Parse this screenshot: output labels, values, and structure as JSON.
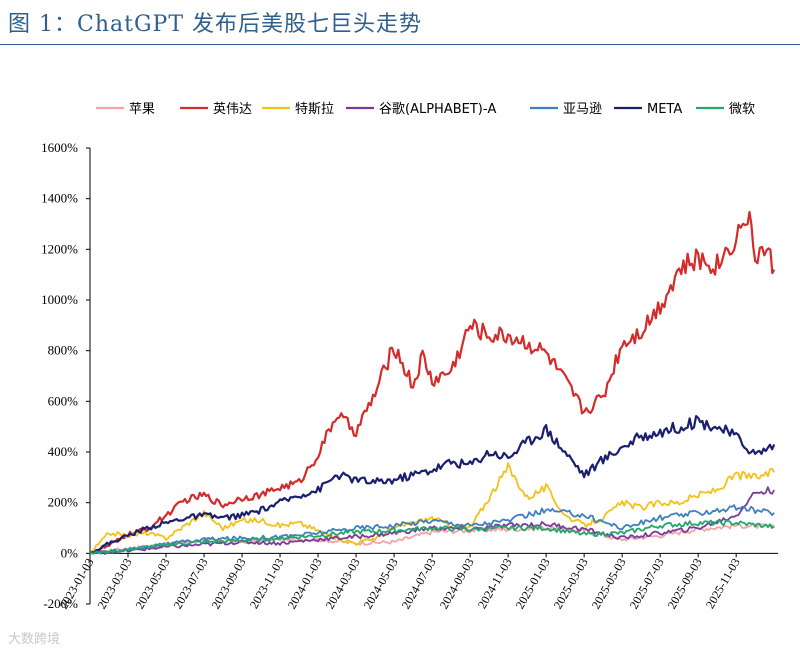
{
  "figure": {
    "title": "图 1：ChatGPT 发布后美股七巨头走势",
    "watermark": "大数跨境"
  },
  "colors": {
    "title": "#2f5f8c",
    "axis": "#000000"
  },
  "chart_data": {
    "type": "line",
    "title": "图 1：ChatGPT 发布后美股七巨头走势",
    "xlabel": "",
    "ylabel": "",
    "ylim": [
      -200,
      1600
    ],
    "yticks": [
      -200,
      0,
      200,
      400,
      600,
      800,
      1000,
      1200,
      1400,
      1600
    ],
    "ytick_labels": [
      "-200%",
      "0%",
      "200%",
      "400%",
      "600%",
      "800%",
      "1000%",
      "1200%",
      "1400%",
      "1600%"
    ],
    "xlim": [
      0,
      36.2
    ],
    "x_ticks": [
      0,
      2,
      4,
      6,
      8,
      10,
      12,
      14,
      16,
      18,
      20,
      22,
      24,
      26,
      28,
      30,
      32,
      34
    ],
    "x_tick_labels": [
      "2023-01-03",
      "2023-03-03",
      "2023-05-03",
      "2023-07-03",
      "2023-09-03",
      "2023-11-03",
      "2024-01-03",
      "2024-03-03",
      "2024-05-03",
      "2024-07-03",
      "2024-09-03",
      "2024-11-03",
      "2025-01-03",
      "2025-03-03",
      "2025-05-03",
      "2025-07-03",
      "2025-09-03",
      "2025-11-03"
    ],
    "x_unit": "months since 2023-01-03",
    "legend_position": "top",
    "grid": false,
    "series": [
      {
        "name": "苹果",
        "color": "#f4a3a8",
        "x": [
          0,
          2,
          4,
          6,
          8,
          10,
          12,
          14,
          16,
          18,
          20,
          22,
          24,
          26,
          27,
          28,
          30,
          32,
          34,
          36
        ],
        "values": [
          0,
          20,
          35,
          55,
          45,
          55,
          55,
          40,
          45,
          85,
          90,
          95,
          100,
          90,
          70,
          55,
          70,
          95,
          110,
          105
        ]
      },
      {
        "name": "英伟达",
        "color": "#d42b2b",
        "x": [
          0,
          1,
          2,
          3,
          4,
          5,
          6,
          7,
          8,
          9,
          10,
          11,
          12,
          13,
          14,
          15,
          16,
          17,
          17.5,
          18,
          19,
          20,
          21,
          22,
          23,
          24,
          25,
          26,
          27,
          28,
          29,
          30,
          31,
          32,
          33,
          34,
          34.6,
          35,
          35.6,
          36
        ],
        "values": [
          0,
          30,
          75,
          95,
          150,
          210,
          230,
          190,
          220,
          230,
          260,
          280,
          390,
          550,
          480,
          630,
          820,
          660,
          780,
          680,
          720,
          900,
          860,
          860,
          830,
          790,
          680,
          560,
          620,
          830,
          880,
          980,
          1120,
          1160,
          1140,
          1250,
          1340,
          1180,
          1200,
          1120
        ]
      },
      {
        "name": "特斯拉",
        "color": "#f2c21a",
        "x": [
          0,
          1,
          2,
          3,
          4,
          5,
          6,
          7,
          8,
          9,
          10,
          11,
          12,
          13,
          14,
          15,
          16,
          17,
          18,
          19,
          20,
          21,
          22,
          23,
          24,
          25,
          26,
          27,
          28,
          29,
          30,
          31,
          32,
          33,
          34,
          35,
          36
        ],
        "values": [
          0,
          80,
          70,
          80,
          60,
          110,
          160,
          100,
          130,
          130,
          110,
          120,
          90,
          60,
          40,
          60,
          100,
          120,
          140,
          110,
          100,
          220,
          340,
          220,
          260,
          150,
          110,
          140,
          200,
          180,
          200,
          200,
          230,
          250,
          310,
          300,
          320
        ]
      },
      {
        "name": "谷歌(ALPHABET)-A",
        "color": "#7b3a9c",
        "x": [
          0,
          2,
          4,
          6,
          8,
          10,
          12,
          14,
          16,
          18,
          20,
          22,
          24,
          26,
          28,
          30,
          32,
          34,
          35,
          36
        ],
        "values": [
          0,
          10,
          25,
          35,
          45,
          40,
          55,
          65,
          80,
          100,
          95,
          110,
          115,
          95,
          60,
          80,
          100,
          150,
          240,
          250
        ]
      },
      {
        "name": "亚马逊",
        "color": "#3f7fbf",
        "x": [
          0,
          2,
          4,
          6,
          8,
          10,
          12,
          14,
          16,
          18,
          20,
          22,
          24,
          26,
          28,
          30,
          32,
          34,
          35,
          36
        ],
        "values": [
          0,
          15,
          35,
          55,
          60,
          65,
          80,
          100,
          110,
          130,
          110,
          130,
          170,
          150,
          100,
          140,
          160,
          180,
          170,
          160
        ]
      },
      {
        "name": "META",
        "color": "#1a1f6e",
        "x": [
          0,
          1,
          2,
          3,
          4,
          5,
          6,
          7,
          8,
          9,
          10,
          11,
          12,
          13,
          14,
          15,
          16,
          17,
          18,
          19,
          20,
          21,
          22,
          23,
          24,
          25,
          26,
          27,
          28,
          29,
          30,
          31,
          32,
          33,
          34,
          35,
          36
        ],
        "values": [
          0,
          40,
          70,
          100,
          120,
          140,
          150,
          140,
          150,
          170,
          200,
          230,
          250,
          310,
          290,
          280,
          290,
          310,
          330,
          360,
          350,
          400,
          380,
          440,
          490,
          400,
          310,
          370,
          420,
          460,
          480,
          500,
          520,
          500,
          460,
          390,
          430
        ]
      },
      {
        "name": "微软",
        "color": "#21a86c",
        "x": [
          0,
          2,
          4,
          6,
          8,
          10,
          12,
          14,
          16,
          18,
          20,
          22,
          24,
          26,
          28,
          30,
          32,
          34,
          36
        ],
        "values": [
          0,
          15,
          35,
          45,
          50,
          60,
          70,
          85,
          90,
          100,
          95,
          100,
          100,
          75,
          80,
          110,
          120,
          120,
          105
        ]
      }
    ]
  }
}
